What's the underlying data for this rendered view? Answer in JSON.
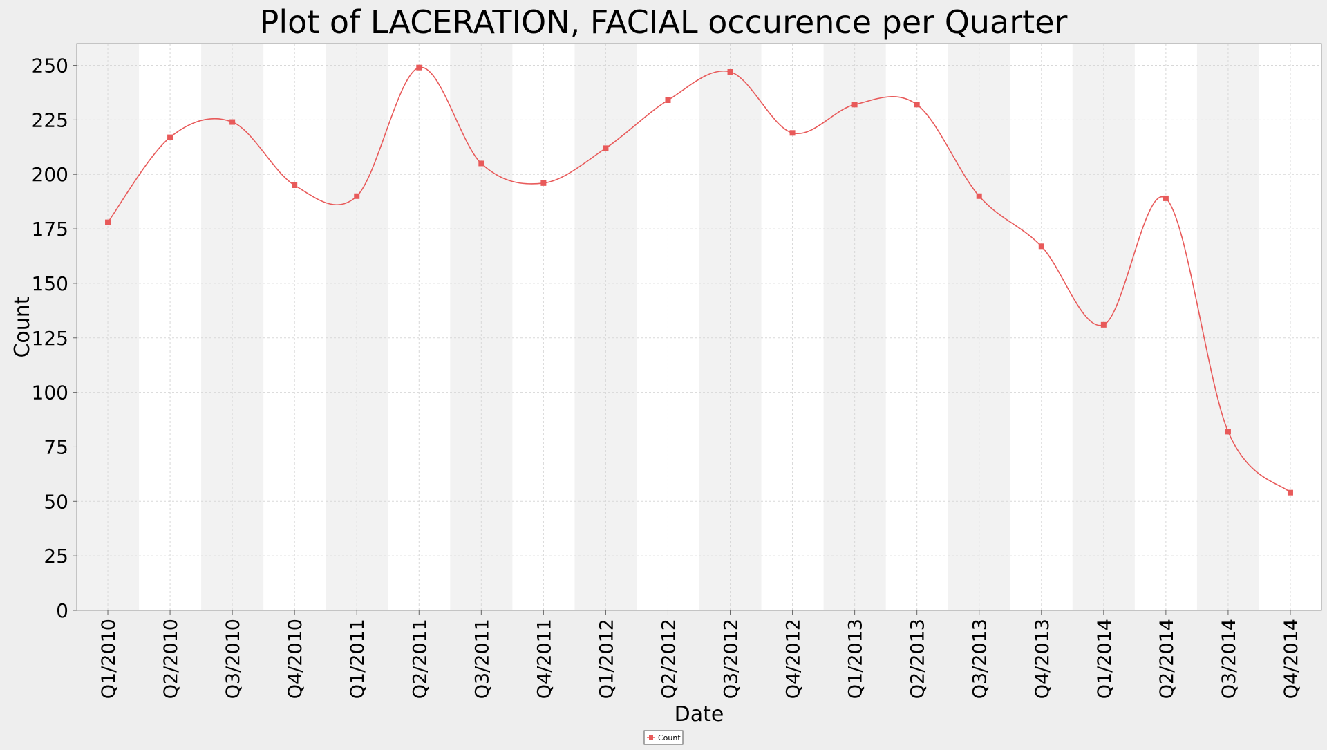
{
  "chart_data": {
    "type": "line",
    "title": "Plot of LACERATION, FACIAL occurence per Quarter",
    "xlabel": "Date",
    "ylabel": "Count",
    "categories": [
      "Q1/2010",
      "Q2/2010",
      "Q3/2010",
      "Q4/2010",
      "Q1/2011",
      "Q2/2011",
      "Q3/2011",
      "Q4/2011",
      "Q1/2012",
      "Q2/2012",
      "Q3/2012",
      "Q4/2012",
      "Q1/2013",
      "Q2/2013",
      "Q3/2013",
      "Q4/2013",
      "Q1/2014",
      "Q2/2014",
      "Q3/2014",
      "Q4/2014"
    ],
    "series": [
      {
        "name": "Count",
        "values": [
          178,
          217,
          224,
          195,
          190,
          249,
          205,
          196,
          212,
          234,
          247,
          219,
          232,
          232,
          190,
          167,
          131,
          189,
          82,
          54
        ]
      }
    ],
    "ylim": [
      0,
      260
    ],
    "yticks": [
      0,
      25,
      50,
      75,
      100,
      125,
      150,
      175,
      200,
      225,
      250
    ],
    "grid": true,
    "line_smoothing": "spline",
    "legend_position": "bottom-center",
    "colors": {
      "series": "#e85a5a",
      "band": "#f2f2f2",
      "plot_bg": "#ffffff",
      "grid": "#d8d8d8"
    }
  }
}
